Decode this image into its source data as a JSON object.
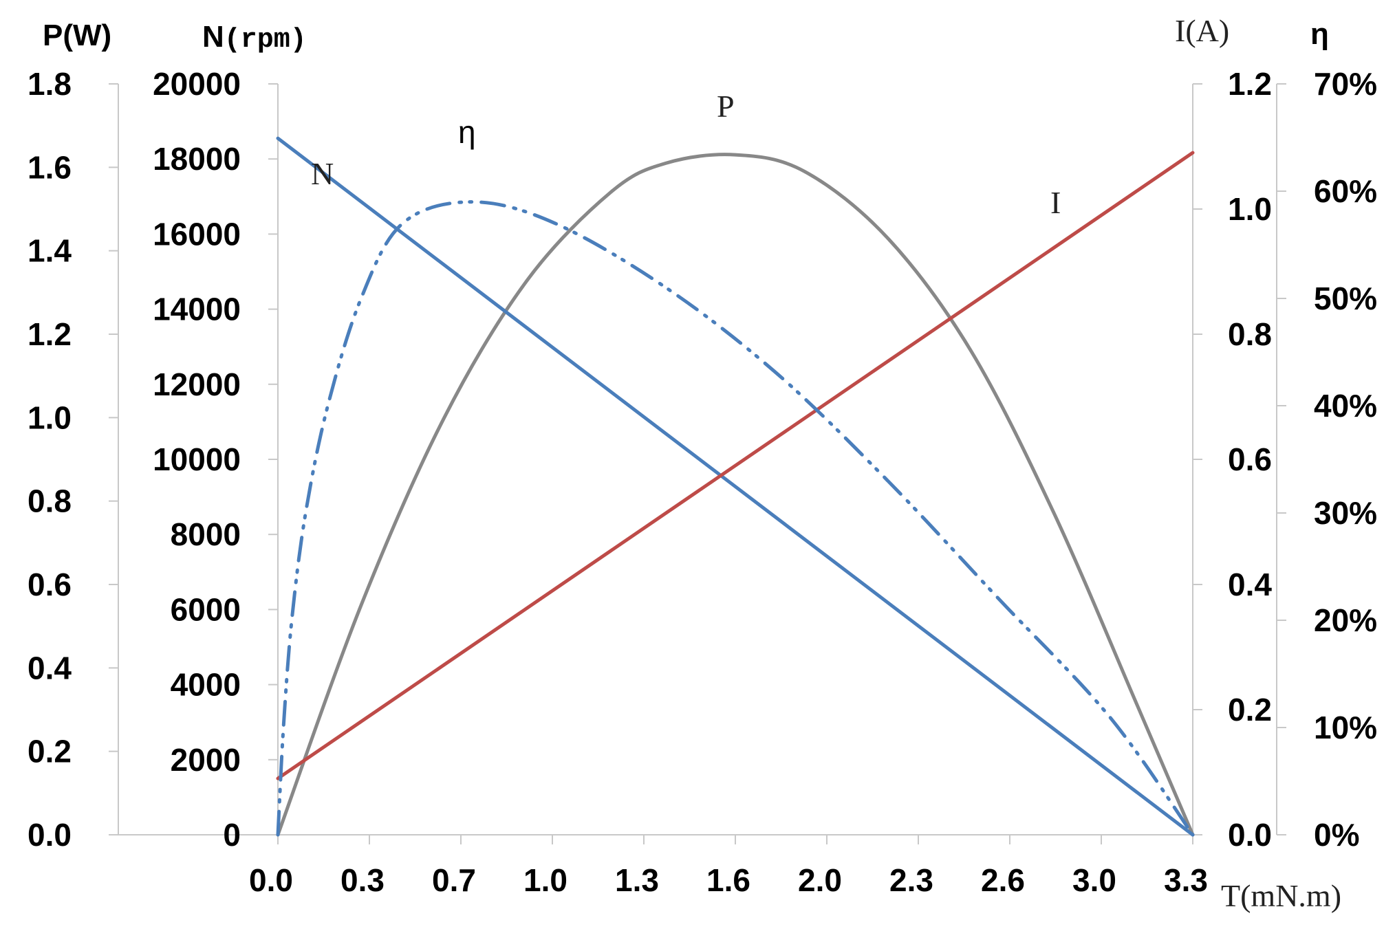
{
  "chart_data": {
    "type": "line",
    "title": "",
    "x_axis": {
      "label": "T(mN.m)",
      "ticks": [
        "0.0",
        "0.3",
        "0.7",
        "1.0",
        "1.3",
        "1.6",
        "2.0",
        "2.3",
        "2.6",
        "3.0",
        "3.3"
      ],
      "range": [
        0,
        3.3
      ]
    },
    "y_axes": [
      {
        "id": "P",
        "label": "P(W)",
        "side": "left-outer",
        "range": [
          0,
          1.8
        ],
        "ticks": [
          "0.0",
          "0.2",
          "0.4",
          "0.6",
          "0.8",
          "1.0",
          "1.2",
          "1.4",
          "1.6",
          "1.8"
        ]
      },
      {
        "id": "N",
        "label_main": "N",
        "label_unit": "(rpm)",
        "side": "left-inner",
        "range": [
          0,
          20000
        ],
        "ticks": [
          "0",
          "2000",
          "4000",
          "6000",
          "8000",
          "10000",
          "12000",
          "14000",
          "16000",
          "18000",
          "20000"
        ]
      },
      {
        "id": "I",
        "label": "I(A)",
        "side": "right-inner",
        "range": [
          0,
          1.2
        ],
        "ticks": [
          "0.0",
          "0.2",
          "0.4",
          "0.6",
          "0.8",
          "1.0",
          "1.2"
        ]
      },
      {
        "id": "eta",
        "label": "η",
        "side": "right-outer",
        "range": [
          0,
          0.7
        ],
        "ticks": [
          "0%",
          "10%",
          "20%",
          "30%",
          "40%",
          "50%",
          "60%",
          "70%"
        ]
      }
    ],
    "series": [
      {
        "name": "N",
        "axis": "N",
        "color": "#4a7ebb",
        "style": "solid",
        "points": [
          [
            0,
            18550
          ],
          [
            3.3,
            0
          ]
        ]
      },
      {
        "name": "I",
        "axis": "I",
        "color": "#be4b48",
        "style": "solid",
        "points": [
          [
            0,
            0.09
          ],
          [
            3.3,
            1.09
          ]
        ]
      },
      {
        "name": "P",
        "axis": "P",
        "color": "#888888",
        "style": "solid",
        "points": [
          [
            0,
            0
          ],
          [
            0.3,
            0.55
          ],
          [
            0.6,
            1.0
          ],
          [
            0.9,
            1.33
          ],
          [
            1.2,
            1.54
          ],
          [
            1.4,
            1.61
          ],
          [
            1.65,
            1.63
          ],
          [
            1.9,
            1.59
          ],
          [
            2.2,
            1.43
          ],
          [
            2.5,
            1.16
          ],
          [
            2.8,
            0.77
          ],
          [
            3.1,
            0.31
          ],
          [
            3.3,
            0
          ]
        ]
      },
      {
        "name": "η",
        "axis": "eta",
        "color": "#4a7ebb",
        "style": "dash-dot-dot",
        "points": [
          [
            0,
            0
          ],
          [
            0.02,
            0.1
          ],
          [
            0.05,
            0.2
          ],
          [
            0.1,
            0.3
          ],
          [
            0.18,
            0.4
          ],
          [
            0.3,
            0.5
          ],
          [
            0.45,
            0.57
          ],
          [
            0.7,
            0.59
          ],
          [
            1.0,
            0.57
          ],
          [
            1.4,
            0.51
          ],
          [
            1.8,
            0.43
          ],
          [
            2.2,
            0.33
          ],
          [
            2.6,
            0.22
          ],
          [
            3.0,
            0.11
          ],
          [
            3.3,
            0
          ]
        ]
      }
    ],
    "annotations": [
      {
        "text": "N",
        "series": "N"
      },
      {
        "text": "η",
        "series": "η"
      },
      {
        "text": "P",
        "series": "P"
      },
      {
        "text": "I",
        "series": "I"
      }
    ]
  }
}
